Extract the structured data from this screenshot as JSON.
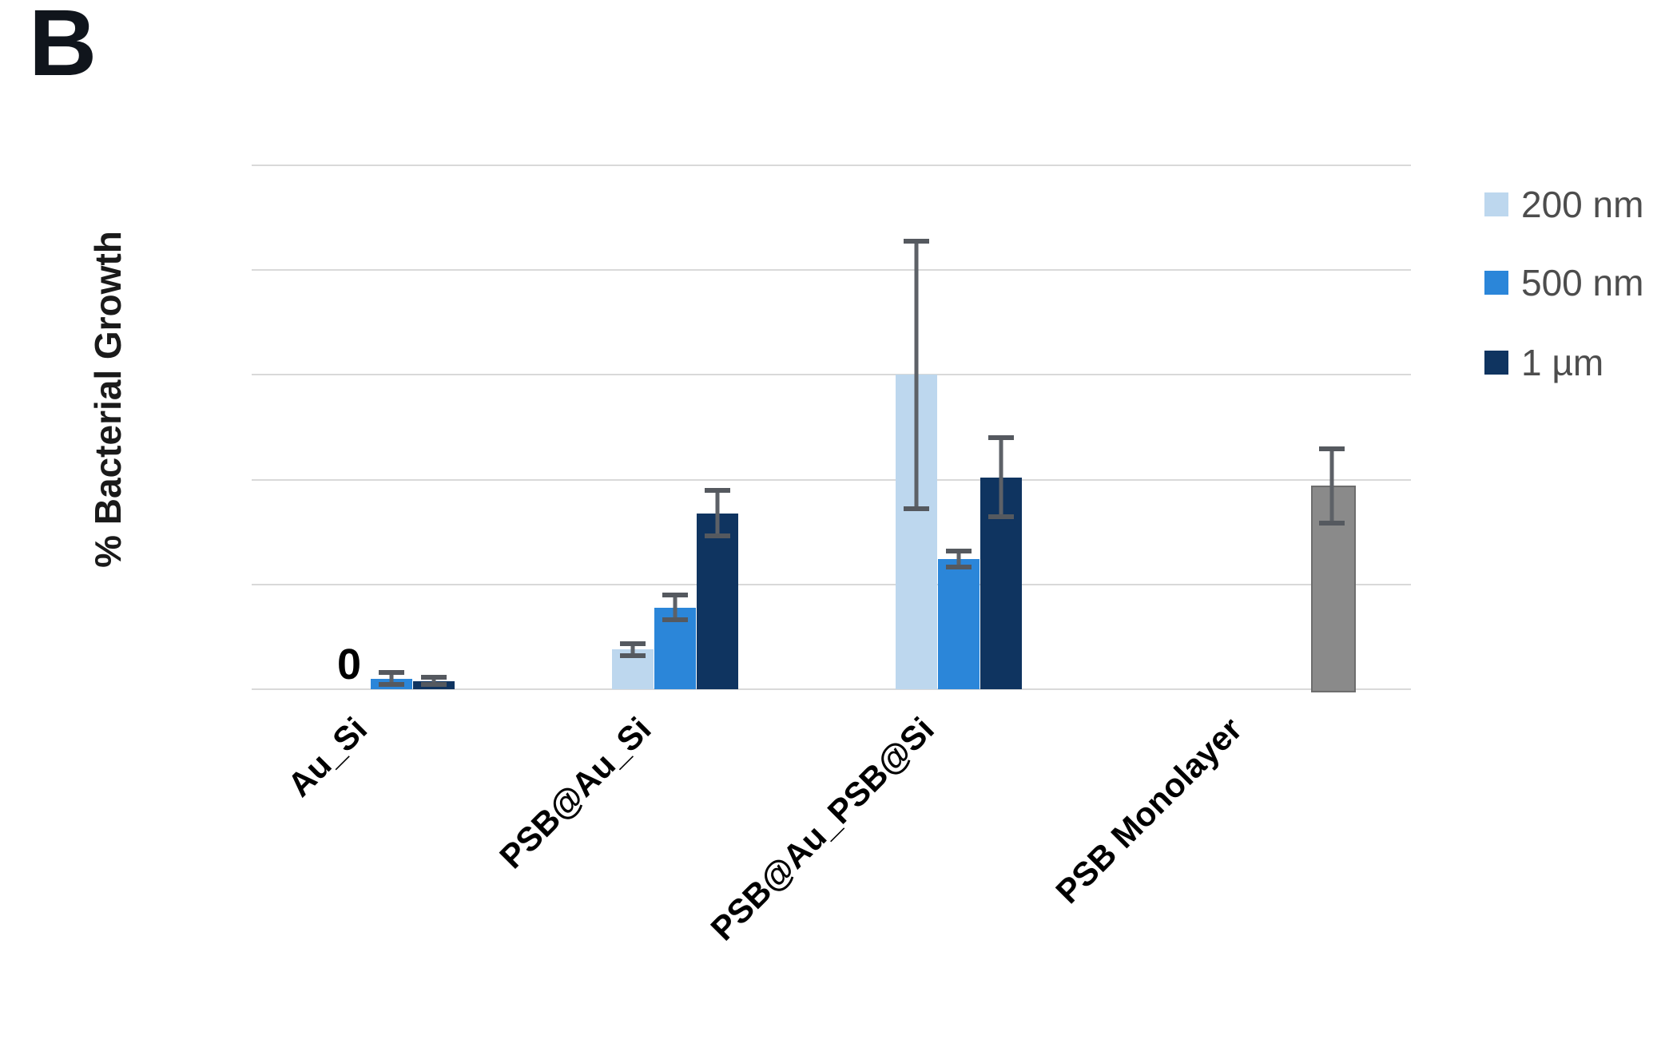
{
  "panel": {
    "label": "B"
  },
  "chart_data": {
    "type": "bar",
    "title": "",
    "xlabel": "",
    "ylabel": "% Bacterial Growth",
    "ylim": [
      0,
      250
    ],
    "yticks": [
      0,
      50,
      100,
      150,
      200,
      250
    ],
    "grid": true,
    "legend_position": "right",
    "categories": [
      "Au_Si",
      "PSB@Au_Si",
      "PSB@Au_PSB@Si",
      "PSB Monolayer"
    ],
    "series": [
      {
        "name": "200 nm",
        "color": "#BDD7EE",
        "in_legend": true,
        "values": [
          0,
          19,
          150,
          null
        ],
        "errors": [
          0,
          4,
          65,
          null
        ],
        "data_labels": [
          "0",
          null,
          null,
          null
        ]
      },
      {
        "name": "500 nm",
        "color": "#2B86D9",
        "in_legend": true,
        "values": [
          5,
          39,
          62,
          null
        ],
        "errors": [
          4,
          7,
          5,
          null
        ],
        "data_labels": [
          null,
          null,
          null,
          null
        ]
      },
      {
        "name": "1 µm",
        "color": "#0F3460",
        "in_legend": true,
        "values": [
          4,
          84,
          101,
          null
        ],
        "errors": [
          3,
          12,
          20,
          null
        ],
        "data_labels": [
          null,
          null,
          null,
          null
        ]
      },
      {
        "name": "",
        "color": "#8A8A8A",
        "in_legend": false,
        "values": [
          null,
          null,
          null,
          97
        ],
        "errors": [
          null,
          null,
          null,
          19
        ],
        "data_labels": [
          null,
          null,
          null,
          null
        ]
      }
    ],
    "error_bar_color": "#5d6167",
    "grid_color": "#D9D9D9",
    "tick_text_color": "#6E6E6E",
    "legend_text_color": "#4D4D4D",
    "axis_title_color": "#1A1A1A"
  }
}
